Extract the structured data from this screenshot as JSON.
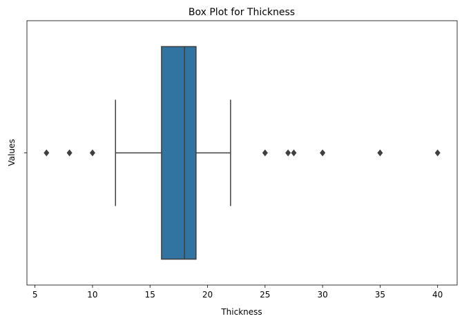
{
  "chart_data": {
    "type": "box",
    "title": "Box Plot for Thickness",
    "xlabel": "Thickness",
    "ylabel": "Values",
    "xlim": [
      4.3,
      41.7
    ],
    "x_ticks": [
      5,
      10,
      15,
      20,
      25,
      30,
      35,
      40
    ],
    "grid": false,
    "series": [
      {
        "whisker_low": 12,
        "q1": 16,
        "median": 18,
        "q3": 19,
        "whisker_high": 22,
        "outliers": [
          6,
          8,
          10,
          25,
          27,
          27.5,
          30,
          35,
          40
        ]
      }
    ],
    "colors": {
      "box": "#3274a1",
      "line": "#3f3f3f"
    }
  }
}
